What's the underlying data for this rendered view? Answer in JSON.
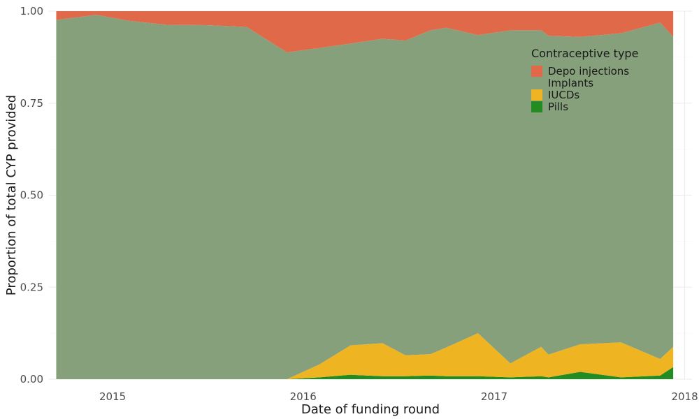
{
  "chart_data": {
    "type": "area",
    "stacked": true,
    "normalized": true,
    "xlabel": "Date of funding round",
    "ylabel": "Proportion of total CYP provided",
    "xlim": [
      "2014-09-01",
      "2018-01-15"
    ],
    "ylim": [
      0,
      1
    ],
    "x_ticks": [
      "2015-01-01",
      "2016-01-01",
      "2017-01-01",
      "2018-01-01"
    ],
    "x_tick_labels": [
      "2015",
      "2016",
      "2017",
      "2018"
    ],
    "y_ticks": [
      0,
      0.25,
      0.5,
      0.75,
      1
    ],
    "y_tick_labels": [
      "0.00",
      "0.25",
      "0.50",
      "0.75",
      "1.00"
    ],
    "grid": true,
    "legend": {
      "title": "Contraceptive type",
      "position": "top-right"
    },
    "x": [
      "2014-09-15",
      "2014-12-01",
      "2015-02-01",
      "2015-04-15",
      "2015-07-01",
      "2015-09-15",
      "2015-12-01",
      "2016-02-01",
      "2016-04-01",
      "2016-06-01",
      "2016-07-15",
      "2016-09-01",
      "2016-10-01",
      "2016-12-01",
      "2017-02-01",
      "2017-04-01",
      "2017-04-15",
      "2017-06-15",
      "2017-09-01",
      "2017-11-15",
      "2017-12-10"
    ],
    "series": [
      {
        "name": "Pills",
        "color": "#228B22",
        "values": [
          0,
          0,
          0,
          0,
          0,
          0,
          0,
          0.005,
          0.012,
          0.008,
          0.008,
          0.01,
          0.008,
          0.008,
          0.005,
          0.008,
          0.005,
          0.02,
          0.005,
          0.01,
          0.033
        ]
      },
      {
        "name": "IUCDs",
        "color": "#EEB422",
        "values": [
          0,
          0,
          0,
          0,
          0,
          0,
          0,
          0.035,
          0.08,
          0.09,
          0.057,
          0.058,
          0.078,
          0.117,
          0.038,
          0.08,
          0.062,
          0.075,
          0.095,
          0.045,
          0.055
        ]
      },
      {
        "name": "Implants",
        "color": "#86A07B",
        "values": [
          0.976,
          0.99,
          0.974,
          0.963,
          0.962,
          0.957,
          0.888,
          0.86,
          0.82,
          0.827,
          0.855,
          0.88,
          0.869,
          0.81,
          0.905,
          0.86,
          0.866,
          0.835,
          0.84,
          0.914,
          0.842
        ]
      },
      {
        "name": "Depo injections",
        "color": "#E0694A",
        "values": [
          0.024,
          0.01,
          0.026,
          0.037,
          0.038,
          0.043,
          0.112,
          0.1,
          0.088,
          0.075,
          0.08,
          0.052,
          0.045,
          0.065,
          0.052,
          0.052,
          0.067,
          0.07,
          0.06,
          0.031,
          0.07
        ]
      }
    ],
    "legend_order": [
      "Depo injections",
      "Implants",
      "IUCDs",
      "Pills"
    ]
  }
}
